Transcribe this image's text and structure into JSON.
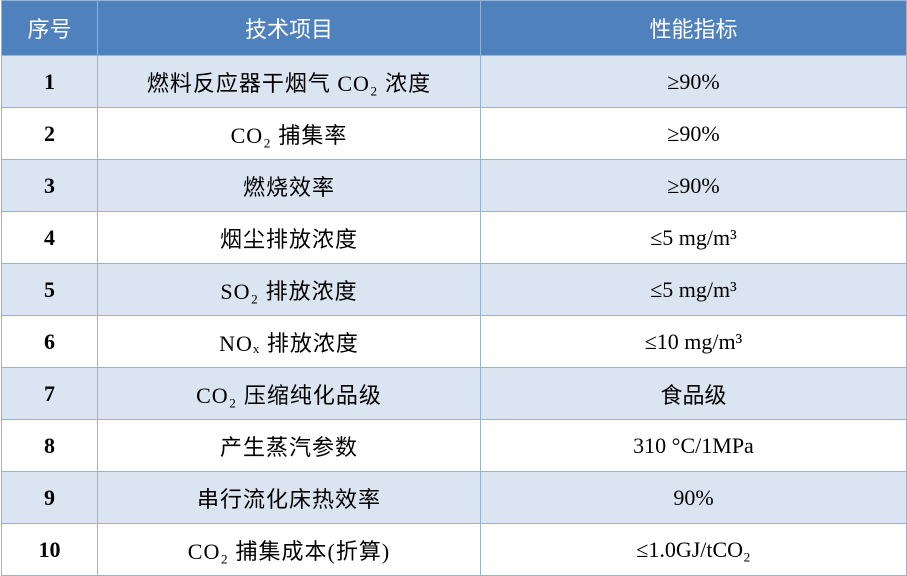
{
  "table": {
    "header": [
      "序号",
      "技术项目",
      "性能指标"
    ],
    "rows": [
      [
        "1",
        "燃料反应器干烟气 CO₂ 浓度",
        "≥90%"
      ],
      [
        "2",
        "CO₂ 捕集率",
        "≥90%"
      ],
      [
        "3",
        "燃烧效率",
        "≥90%"
      ],
      [
        "4",
        "烟尘排放浓度",
        "≤5 mg/m³"
      ],
      [
        "5",
        "SO₂ 排放浓度",
        "≤5 mg/m³"
      ],
      [
        "6",
        "NOₓ 排放浓度",
        "≤10 mg/m³"
      ],
      [
        "7",
        "CO₂ 压缩纯化品级",
        "食品级"
      ],
      [
        "8",
        "产生蒸汽参数",
        "310 °C/1MPa"
      ],
      [
        "9",
        "串行流化床热效率",
        "90%"
      ],
      [
        "10",
        "CO₂ 捕集成本(折算)",
        "≤1.0GJ/tCO₂"
      ]
    ]
  }
}
